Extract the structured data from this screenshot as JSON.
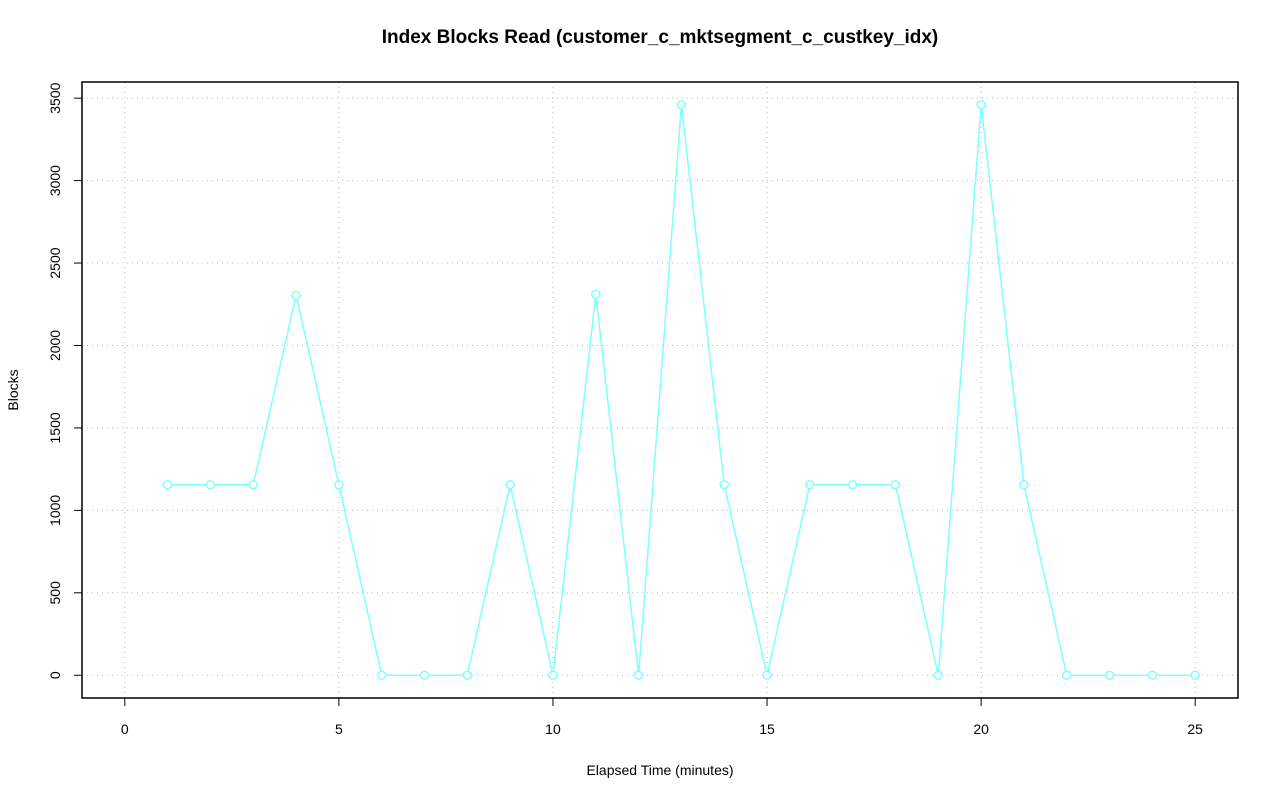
{
  "chart_data": {
    "type": "line",
    "title": "Index Blocks Read (customer_c_mktsegment_c_custkey_idx)",
    "x_label": "Elapsed Time (minutes)",
    "y_label": "Blocks",
    "series": [
      {
        "color": "#80ffff",
        "x": [
          1,
          2,
          3,
          4,
          5,
          6,
          7,
          8,
          9,
          10,
          11,
          12,
          13,
          14,
          15,
          16,
          17,
          18,
          19,
          20,
          21,
          22,
          23,
          24,
          25
        ],
        "values": [
          1155,
          1155,
          1155,
          2305,
          1155,
          0,
          0,
          0,
          1155,
          0,
          2310,
          0,
          3460,
          1155,
          0,
          1155,
          1155,
          1155,
          0,
          3460,
          1155,
          0,
          0,
          0,
          0
        ]
      }
    ],
    "xlim": [
      -1,
      26
    ],
    "ylim": [
      -138,
      3598
    ],
    "xticks": [
      0,
      5,
      10,
      15,
      20,
      25
    ],
    "yticks": [
      0,
      500,
      1000,
      1500,
      2000,
      2500,
      3000,
      3500
    ],
    "grid": true
  }
}
